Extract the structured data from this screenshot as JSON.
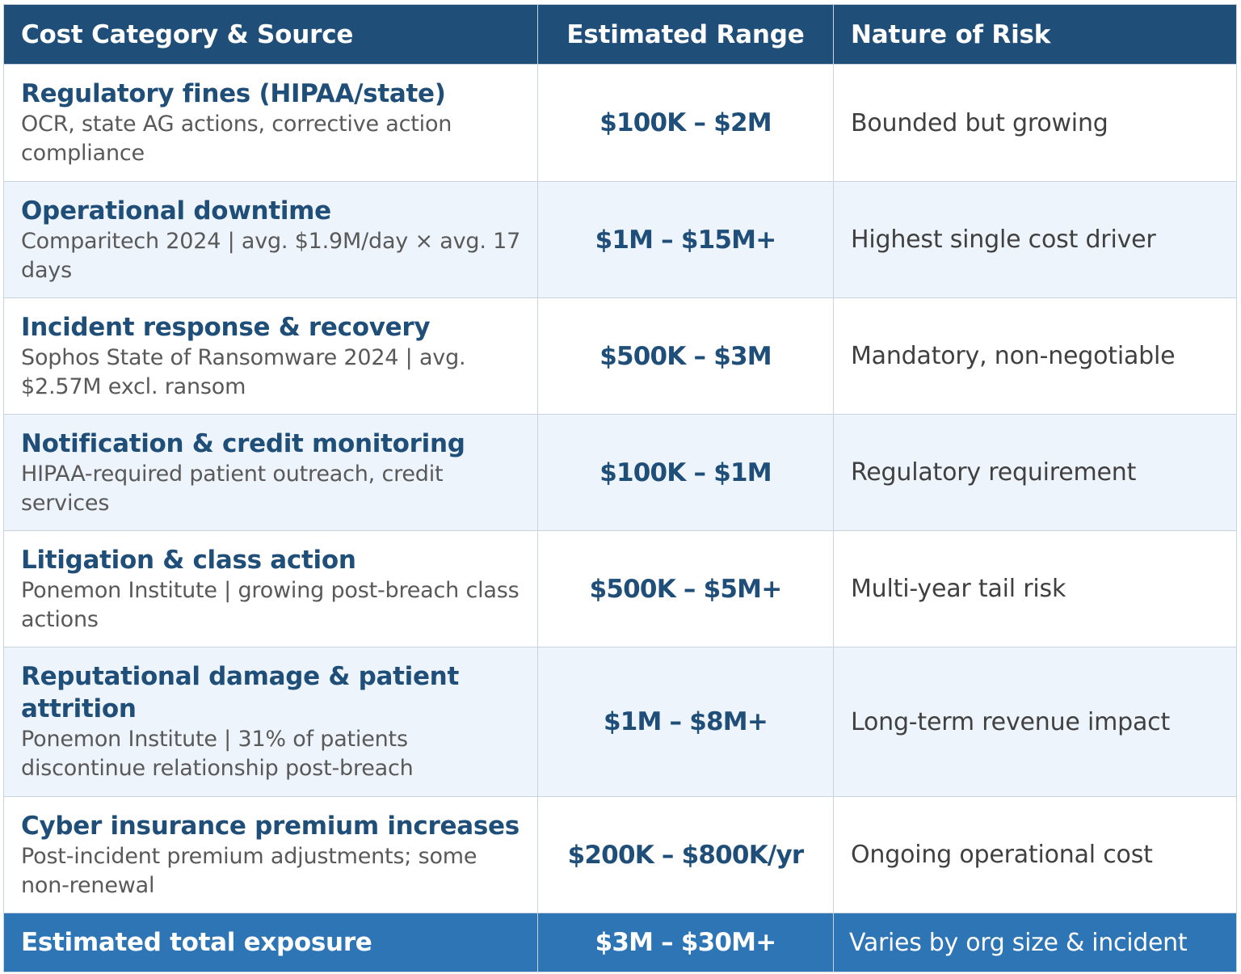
{
  "headers": {
    "category": "Cost Category & Source",
    "range": "Estimated Range",
    "nature": "Nature of Risk"
  },
  "rows": [
    {
      "title": "Regulatory fines (HIPAA/state)",
      "source": "OCR, state AG actions, corrective action compliance",
      "range": "$100K – $2M",
      "nature": "Bounded but growing"
    },
    {
      "title": "Operational downtime",
      "source": "Comparitech 2024 | avg. $1.9M/day × avg. 17 days",
      "range": "$1M – $15M+",
      "nature": "Highest single cost driver"
    },
    {
      "title": "Incident response & recovery",
      "source": "Sophos State of Ransomware 2024 | avg. $2.57M excl. ransom",
      "range": "$500K – $3M",
      "nature": "Mandatory, non-negotiable"
    },
    {
      "title": "Notification & credit monitoring",
      "source": "HIPAA-required patient outreach, credit services",
      "range": "$100K – $1M",
      "nature": "Regulatory requirement"
    },
    {
      "title": "Litigation & class action",
      "source": "Ponemon Institute | growing post-breach class actions",
      "range": "$500K – $5M+",
      "nature": "Multi-year tail risk"
    },
    {
      "title": "Reputational damage & patient attrition",
      "source": "Ponemon Institute | 31% of patients discontinue relationship post-breach",
      "range": "$1M – $8M+",
      "nature": "Long-term revenue impact"
    },
    {
      "title": "Cyber insurance premium increases",
      "source": "Post-incident premium adjustments; some non-renewal",
      "range": "$200K – $800K/yr",
      "nature": "Ongoing operational cost"
    }
  ],
  "total": {
    "label": "Estimated total exposure",
    "range": "$3M – $30M+",
    "nature": "Varies by org size & incident"
  },
  "colors": {
    "header_bg": "#1f4e79",
    "total_bg": "#2e75b6",
    "alt_row_bg": "#eef4fc",
    "accent_text": "#1f4e79"
  }
}
